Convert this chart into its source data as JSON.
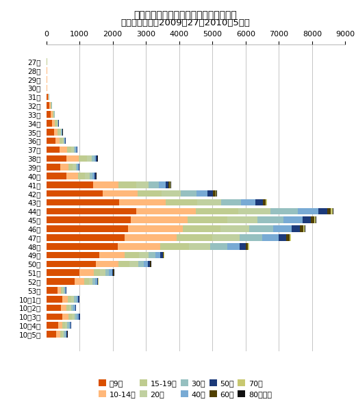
{
  "title": "東京都におけるインフルエンザの報告数",
  "subtitle": "（年齢階層別、2009年27〜2010年5週）",
  "weeks": [
    "27週",
    "28週",
    "29週",
    "30週",
    "31週",
    "32週",
    "33週",
    "34週",
    "35週",
    "36週",
    "37週",
    "38週",
    "39週",
    "40週",
    "41週",
    "42週",
    "43週",
    "44週",
    "45週",
    "46週",
    "47週",
    "48週",
    "49週",
    "50週",
    "51週",
    "52週",
    "53週",
    "10年1週",
    "10年2週",
    "10年3週",
    "10年4週",
    "10年5週"
  ],
  "age_groups": [
    "〜9歳",
    "10-14歳",
    "15-19歳",
    "20代",
    "30代",
    "40代",
    "50代",
    "60代",
    "70代",
    "80歳以上"
  ],
  "colors": [
    "#D94F00",
    "#FFB87A",
    "#BFCC90",
    "#C0D0A0",
    "#96C0C0",
    "#78AAD4",
    "#1C3A7A",
    "#504000",
    "#C8C870",
    "#101010"
  ],
  "data": [
    [
      15,
      3,
      2,
      1,
      1,
      0,
      0,
      0,
      0,
      0
    ],
    [
      16,
      4,
      2,
      2,
      1,
      1,
      0,
      0,
      0,
      0
    ],
    [
      18,
      4,
      2,
      2,
      1,
      1,
      0,
      0,
      0,
      0
    ],
    [
      18,
      4,
      2,
      2,
      1,
      1,
      0,
      0,
      0,
      0
    ],
    [
      50,
      15,
      8,
      6,
      4,
      3,
      2,
      1,
      0,
      0
    ],
    [
      90,
      35,
      20,
      15,
      9,
      6,
      3,
      1,
      1,
      0
    ],
    [
      130,
      55,
      30,
      22,
      12,
      8,
      4,
      2,
      1,
      1
    ],
    [
      180,
      80,
      48,
      32,
      16,
      12,
      5,
      3,
      2,
      1
    ],
    [
      230,
      110,
      65,
      40,
      20,
      14,
      7,
      4,
      2,
      1
    ],
    [
      270,
      130,
      75,
      50,
      25,
      17,
      8,
      4,
      3,
      2
    ],
    [
      400,
      230,
      130,
      82,
      40,
      28,
      16,
      8,
      4,
      2
    ],
    [
      600,
      380,
      250,
      145,
      75,
      50,
      24,
      12,
      6,
      3
    ],
    [
      430,
      240,
      130,
      87,
      50,
      34,
      16,
      8,
      4,
      2
    ],
    [
      600,
      350,
      210,
      150,
      88,
      58,
      28,
      12,
      6,
      3
    ],
    [
      1400,
      780,
      520,
      380,
      300,
      210,
      95,
      40,
      20,
      7
    ],
    [
      1700,
      1050,
      730,
      560,
      480,
      340,
      165,
      65,
      32,
      12
    ],
    [
      2200,
      1400,
      950,
      720,
      600,
      430,
      210,
      82,
      42,
      15
    ],
    [
      2700,
      1800,
      1280,
      960,
      840,
      600,
      270,
      110,
      55,
      20
    ],
    [
      2550,
      1700,
      1200,
      900,
      780,
      580,
      255,
      100,
      50,
      18
    ],
    [
      2450,
      1650,
      1150,
      855,
      730,
      550,
      245,
      95,
      47,
      17
    ],
    [
      2350,
      1570,
      1080,
      810,
      680,
      510,
      228,
      85,
      43,
      15
    ],
    [
      2150,
      1280,
      860,
      640,
      510,
      370,
      185,
      68,
      34,
      12
    ],
    [
      1600,
      760,
      420,
      290,
      210,
      150,
      75,
      28,
      12,
      4
    ],
    [
      1500,
      670,
      340,
      252,
      168,
      132,
      58,
      20,
      8,
      3
    ],
    [
      1000,
      420,
      205,
      148,
      116,
      88,
      40,
      14,
      6,
      2
    ],
    [
      850,
      295,
      148,
      102,
      76,
      58,
      24,
      10,
      4,
      2
    ],
    [
      340,
      98,
      50,
      42,
      34,
      25,
      12,
      5,
      2,
      1
    ],
    [
      480,
      175,
      105,
      77,
      70,
      56,
      26,
      10,
      4,
      2
    ],
    [
      440,
      160,
      88,
      70,
      62,
      48,
      22,
      9,
      4,
      1
    ],
    [
      490,
      178,
      106,
      80,
      70,
      58,
      26,
      10,
      5,
      2
    ],
    [
      355,
      132,
      80,
      62,
      53,
      44,
      18,
      7,
      3,
      1
    ],
    [
      305,
      108,
      62,
      54,
      46,
      36,
      16,
      6,
      3,
      1
    ]
  ],
  "xlim": [
    0,
    9000
  ],
  "xticks": [
    0,
    1000,
    2000,
    3000,
    4000,
    5000,
    6000,
    7000,
    8000,
    9000
  ],
  "figsize": [
    5.2,
    5.9
  ],
  "dpi": 100
}
